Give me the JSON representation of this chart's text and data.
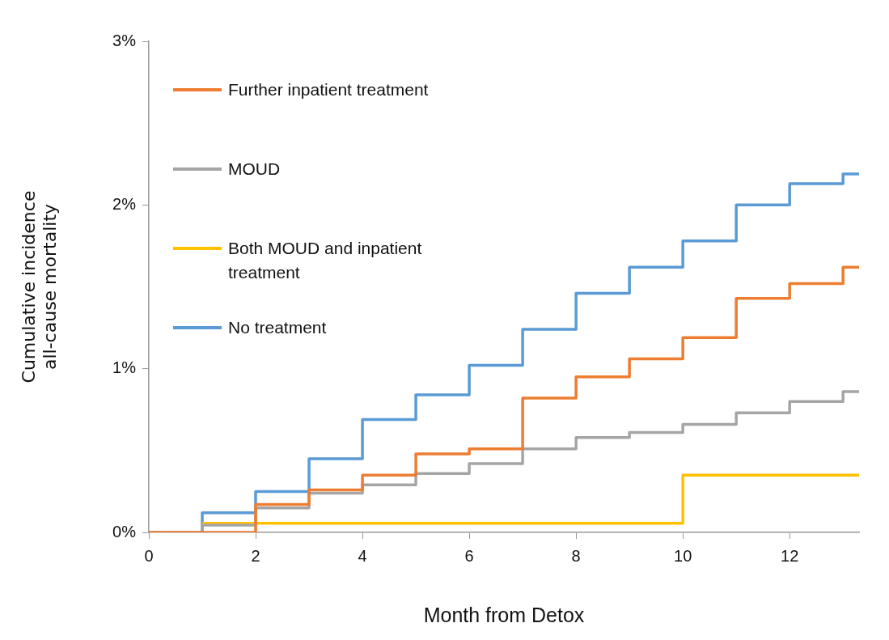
{
  "chart_data": {
    "type": "step",
    "xlabel": "Month from Detox",
    "ylabel": "Cumulative incidence\nall-cause mortality",
    "xlim": [
      0,
      13.3
    ],
    "xticks": [
      0,
      2,
      4,
      6,
      8,
      10,
      12
    ],
    "ylim": [
      0,
      3
    ],
    "yticks": [
      {
        "value": 0,
        "label": "0%"
      },
      {
        "value": 1,
        "label": "1%"
      },
      {
        "value": 2,
        "label": "2%"
      },
      {
        "value": 3,
        "label": "3%"
      }
    ],
    "grid": false,
    "legend": "top left",
    "marker": "none",
    "line_style": "solid",
    "series": [
      {
        "name": "Further inpatient treatment",
        "color": "#ed7d31",
        "x": [
          0,
          2,
          3,
          4,
          5,
          6,
          7,
          8,
          9,
          10,
          11,
          12,
          13,
          13.3
        ],
        "values": [
          0,
          0.17,
          0.26,
          0.35,
          0.48,
          0.51,
          0.82,
          0.95,
          1.06,
          1.19,
          1.43,
          1.52,
          1.62,
          1.62
        ]
      },
      {
        "name": "MOUD",
        "color": "#a5a5a5",
        "x": [
          0,
          1,
          2,
          3,
          4,
          5,
          6,
          7,
          8,
          9,
          10,
          11,
          12,
          13,
          13.3
        ],
        "values": [
          0,
          0.045,
          0.15,
          0.24,
          0.29,
          0.36,
          0.42,
          0.51,
          0.58,
          0.61,
          0.66,
          0.73,
          0.8,
          0.86,
          0.86
        ]
      },
      {
        "name": "Both MOUD and inpatient treatment",
        "color": "#ffc000",
        "x": [
          1,
          10,
          13.3
        ],
        "values": [
          0.055,
          0.35,
          0.35
        ]
      },
      {
        "name": "No treatment",
        "color": "#5b9bd5",
        "x": [
          0,
          1,
          2,
          3,
          4,
          5,
          6,
          7,
          8,
          9,
          10,
          11,
          12,
          13,
          13.3
        ],
        "values": [
          0,
          0.12,
          0.25,
          0.45,
          0.69,
          0.84,
          1.02,
          1.24,
          1.46,
          1.62,
          1.78,
          2.0,
          2.13,
          2.19,
          2.19
        ]
      }
    ]
  }
}
